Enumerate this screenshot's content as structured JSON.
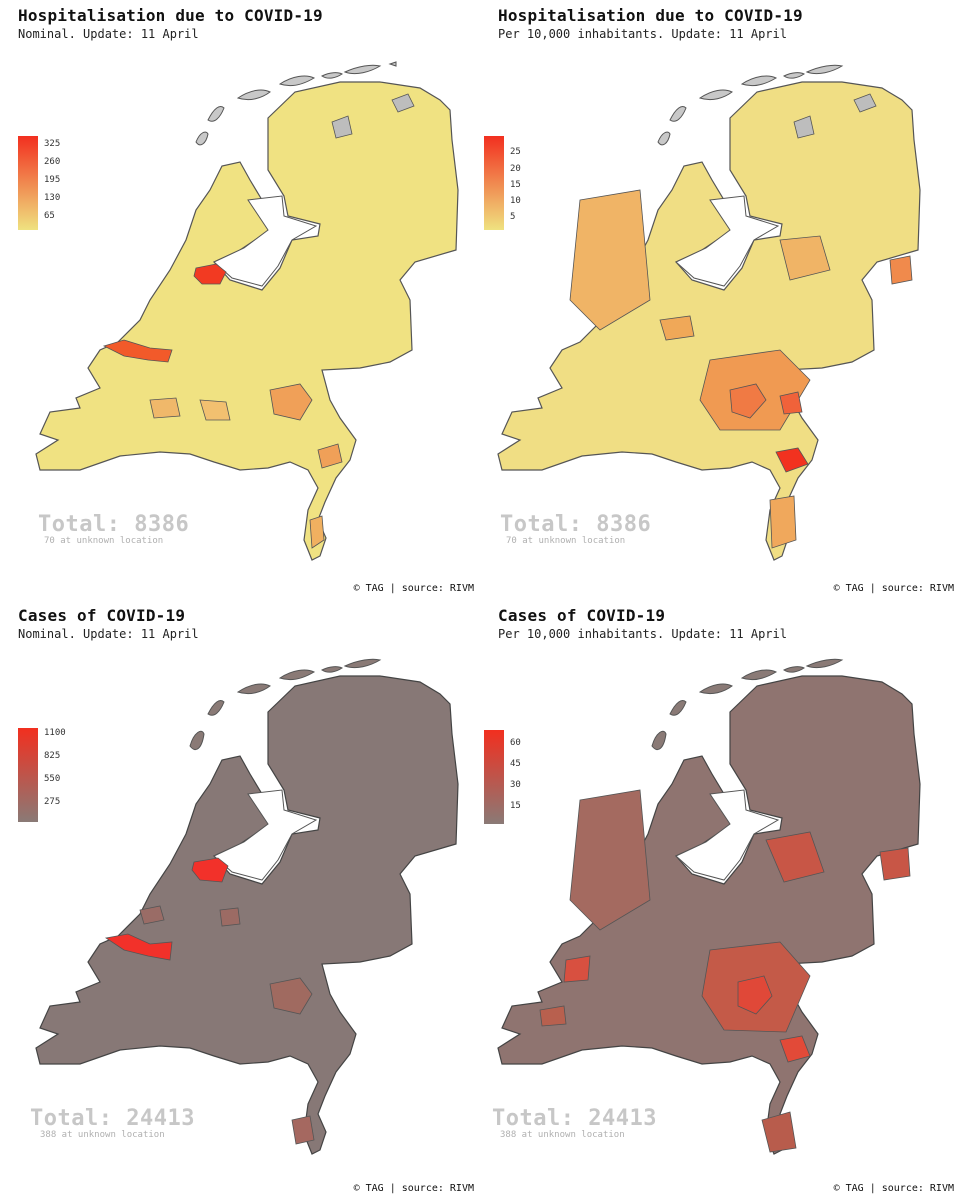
{
  "panels": [
    {
      "title": "Hospitalisation due to COVID-19",
      "subtitle": "Nominal. Update: 11 April",
      "legend_ticks": [
        "325",
        "260",
        "195",
        "130",
        "65"
      ],
      "legend_colors": {
        "low": "#efe280",
        "high": "#f22f1f"
      },
      "total": "Total: 8386",
      "unknown": "70 at unknown location",
      "credit": "© TAG | source: RIVM"
    },
    {
      "title": "Hospitalisation due to COVID-19",
      "subtitle": "Per 10,000 inhabitants. Update: 11 April",
      "legend_ticks": [
        "25",
        "20",
        "15",
        "10",
        "5"
      ],
      "legend_colors": {
        "low": "#efe280",
        "high": "#f22f1f"
      },
      "total": "Total: 8386",
      "unknown": "70 at unknown location",
      "credit": "© TAG | source: RIVM"
    },
    {
      "title": "Cases of COVID-19",
      "subtitle": "Nominal. Update: 11 April",
      "legend_ticks": [
        "1100",
        "825",
        "550",
        "275"
      ],
      "legend_colors": {
        "low": "#8a7a76",
        "high": "#f22f1f"
      },
      "total": "Total: 24413",
      "unknown": "388 at unknown location",
      "credit": "© TAG | source: RIVM"
    },
    {
      "title": "Cases of COVID-19",
      "subtitle": "Per 10,000 inhabitants. Update: 11 April",
      "legend_ticks": [
        "60",
        "45",
        "30",
        "15"
      ],
      "legend_colors": {
        "low": "#8a7a76",
        "high": "#f22f1f"
      },
      "total": "Total: 24413",
      "unknown": "388 at unknown location",
      "credit": "© TAG | source: RIVM"
    }
  ]
}
